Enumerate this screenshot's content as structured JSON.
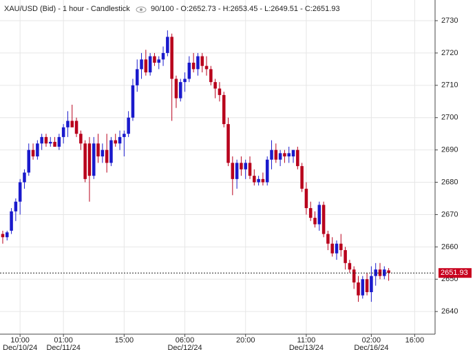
{
  "chart_data": {
    "type": "candlestick",
    "title": "XAU/USD (Bid) - 1 hour - Candlestick",
    "subtitle": "90/100 - O:2652.73 - H:2653.45 - L:2649.51 - C:2651.93",
    "up_color": "#1a1acc",
    "down_color": "#b8001c",
    "open": [
      2664,
      2663,
      2665,
      2671,
      2674,
      2680,
      2683,
      2690,
      2688,
      2692,
      2694,
      2692,
      2692.5,
      2691,
      2694,
      2697,
      2699,
      2699,
      2695,
      2692,
      2692,
      2682,
      2692,
      2688,
      2690,
      2686,
      2693,
      2692,
      2694,
      2695,
      2700,
      2710,
      2715,
      2718,
      2714,
      2719,
      2717,
      2718,
      2720,
      2725,
      2712,
      2706,
      2711,
      2712,
      2717,
      2715,
      2719,
      2716,
      2715,
      2711,
      2709,
      2707,
      2698,
      2686,
      2681,
      2686,
      2684,
      2686,
      2682,
      2680,
      2681,
      2680,
      2687,
      2690,
      2687,
      2689,
      2688,
      2688,
      2690,
      2685,
      2678,
      2672,
      2669,
      2667,
      2673,
      2664,
      2661,
      2658,
      2661,
      2659,
      2655,
      2653,
      2649,
      2645,
      2650,
      2646,
      2651,
      2653,
      2651,
      2652.73
    ],
    "high": [
      2665,
      2665,
      2672,
      2675,
      2681,
      2684,
      2692,
      2692,
      2693,
      2695,
      2695,
      2694,
      2694,
      2695,
      2698,
      2702,
      2704,
      2700,
      2696,
      2693,
      2694,
      2694,
      2695,
      2692,
      2695,
      2694,
      2695,
      2696,
      2696,
      2702,
      2712,
      2718,
      2720,
      2721,
      2720,
      2720,
      2719,
      2722,
      2727,
      2726,
      2713,
      2712,
      2714,
      2719,
      2720,
      2720,
      2720,
      2719,
      2716,
      2712,
      2711,
      2708,
      2700,
      2688,
      2687,
      2688,
      2687,
      2688,
      2684,
      2682,
      2683,
      2688,
      2693,
      2692,
      2690,
      2690,
      2691,
      2690,
      2691,
      2686,
      2680,
      2674,
      2671,
      2674,
      2674,
      2665,
      2663,
      2662,
      2664,
      2660,
      2656,
      2654,
      2651,
      2651,
      2652,
      2654,
      2655,
      2655,
      2654,
      2653.45
    ],
    "low": [
      2661,
      2662,
      2664,
      2668,
      2670,
      2678,
      2682,
      2687,
      2687,
      2690,
      2691,
      2691,
      2691,
      2690,
      2692,
      2694,
      2698,
      2694,
      2690,
      2680,
      2674,
      2681,
      2686,
      2686,
      2683,
      2685,
      2691,
      2690,
      2688,
      2694,
      2699,
      2708,
      2712,
      2713,
      2713,
      2716,
      2715,
      2716,
      2719,
      2699,
      2703,
      2705,
      2708,
      2711,
      2714,
      2713,
      2714,
      2713,
      2710,
      2706,
      2705,
      2697,
      2685,
      2676,
      2678,
      2682,
      2681,
      2681,
      2679,
      2679,
      2679,
      2679,
      2684,
      2686,
      2685,
      2686,
      2686,
      2686,
      2684,
      2677,
      2670,
      2668,
      2666,
      2665,
      2663,
      2659,
      2657,
      2656,
      2657,
      2653,
      2652,
      2647,
      2643,
      2644,
      2645,
      2643,
      2648,
      2650,
      2650,
      2649.51
    ],
    "close": [
      2663,
      2664.5,
      2671,
      2674,
      2680,
      2683,
      2690,
      2688,
      2692,
      2694,
      2692,
      2692.5,
      2691,
      2694,
      2697,
      2699,
      2697,
      2695,
      2692,
      2681,
      2682,
      2692,
      2688,
      2690,
      2686,
      2693,
      2692,
      2694,
      2695,
      2700,
      2710,
      2715,
      2718,
      2714,
      2719,
      2717,
      2718,
      2720,
      2725,
      2712,
      2706,
      2711,
      2712,
      2717,
      2715,
      2719,
      2716,
      2715,
      2711,
      2709,
      2707,
      2698,
      2686,
      2681,
      2686,
      2684,
      2686,
      2682,
      2680,
      2681,
      2680,
      2687,
      2690,
      2687,
      2689,
      2688,
      2689,
      2690,
      2685,
      2678,
      2672,
      2669,
      2667,
      2673,
      2664,
      2661,
      2658,
      2661,
      2659,
      2655,
      2653,
      2649,
      2645,
      2650,
      2646,
      2651,
      2653,
      2651,
      2653,
      2651.93
    ],
    "xlim": [
      -0.63,
      99.7
    ],
    "xticks": [
      {
        "value": 4,
        "label": "10:00"
      },
      {
        "value": 14,
        "label": "01:00"
      },
      {
        "value": 28,
        "label": "15:00"
      },
      {
        "value": 42,
        "label": "06:00"
      },
      {
        "value": 56,
        "label": "20:00"
      },
      {
        "value": 70,
        "label": "11:00"
      },
      {
        "value": 85,
        "label": "02:00"
      },
      {
        "value": 95,
        "label": "16:00"
      }
    ],
    "xtick_dates": [
      {
        "value": 4,
        "label": "Dec/10/24"
      },
      {
        "value": 14,
        "label": "Dec/11/24"
      },
      {
        "value": 42,
        "label": "Dec/12/24"
      },
      {
        "value": 70,
        "label": "Dec/13/24"
      },
      {
        "value": 85,
        "label": "Dec/16/24"
      }
    ],
    "ylim": [
      2633,
      2736.4
    ],
    "yticks": [
      2640,
      2650,
      2660,
      2670,
      2680,
      2690,
      2700,
      2710,
      2720,
      2730
    ],
    "grid": true,
    "last_price_color": "#c8001e"
  }
}
